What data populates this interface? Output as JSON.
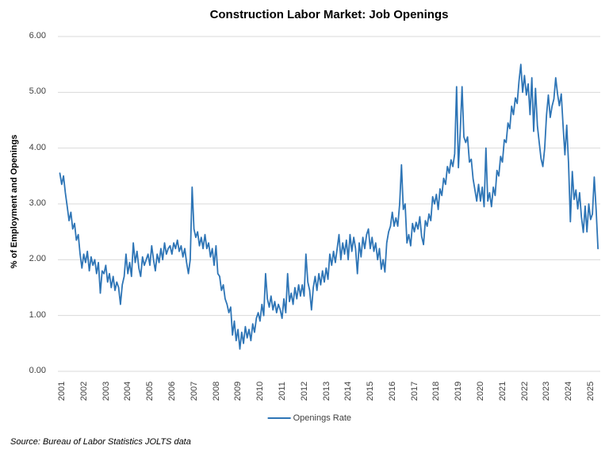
{
  "chart_data": {
    "type": "line",
    "title": "Construction Labor Market: Job Openings",
    "ylabel": "% of Employment and Openings",
    "xlabel": "",
    "ylim": [
      0,
      6
    ],
    "grid": "horizontal",
    "legend_position": "bottom",
    "y_ticks": [
      "0.00",
      "1.00",
      "2.00",
      "3.00",
      "4.00",
      "5.00",
      "6.00"
    ],
    "x_tick_years": [
      "2001",
      "2002",
      "2003",
      "2004",
      "2005",
      "2006",
      "2007",
      "2008",
      "2009",
      "2010",
      "2011",
      "2012",
      "2013",
      "2014",
      "2015",
      "2016",
      "2017",
      "2018",
      "2019",
      "2020",
      "2021",
      "2022",
      "2023",
      "2024",
      "2025"
    ],
    "start_month": "2001-01",
    "frequency": "monthly",
    "series": [
      {
        "name": "Openings Rate",
        "color": "#2E75B6",
        "values": [
          3.55,
          3.35,
          3.5,
          3.2,
          2.95,
          2.7,
          2.85,
          2.55,
          2.65,
          2.35,
          2.45,
          2.1,
          1.85,
          2.1,
          1.95,
          2.15,
          1.8,
          2.05,
          1.9,
          2.0,
          1.75,
          1.95,
          1.4,
          1.8,
          1.75,
          1.9,
          1.6,
          1.75,
          1.5,
          1.7,
          1.45,
          1.6,
          1.5,
          1.2,
          1.55,
          1.7,
          2.1,
          1.75,
          1.95,
          1.7,
          2.3,
          1.95,
          2.15,
          1.85,
          1.7,
          2.05,
          1.9,
          2.0,
          2.1,
          1.9,
          2.25,
          2.0,
          1.8,
          2.1,
          1.95,
          2.2,
          2.0,
          2.3,
          2.1,
          2.2,
          2.25,
          2.1,
          2.3,
          2.2,
          2.35,
          2.15,
          2.25,
          2.05,
          2.2,
          1.95,
          1.75,
          2.0,
          3.3,
          2.55,
          2.4,
          2.5,
          2.25,
          2.4,
          2.2,
          2.45,
          2.2,
          2.3,
          2.05,
          2.2,
          1.9,
          2.25,
          1.75,
          1.7,
          1.45,
          1.55,
          1.3,
          1.2,
          1.05,
          1.15,
          0.65,
          0.9,
          0.55,
          0.75,
          0.4,
          0.7,
          0.5,
          0.8,
          0.6,
          0.75,
          0.55,
          0.85,
          0.7,
          0.95,
          1.05,
          0.9,
          1.2,
          1.0,
          1.75,
          1.3,
          1.15,
          1.35,
          1.1,
          1.25,
          1.05,
          1.2,
          1.1,
          0.95,
          1.3,
          1.05,
          1.75,
          1.25,
          1.4,
          1.2,
          1.5,
          1.3,
          1.55,
          1.35,
          1.55,
          1.35,
          2.1,
          1.6,
          1.45,
          1.1,
          1.5,
          1.7,
          1.45,
          1.75,
          1.55,
          1.8,
          1.6,
          1.85,
          1.65,
          2.1,
          1.9,
          2.15,
          1.95,
          2.2,
          2.45,
          2.0,
          2.3,
          2.1,
          2.35,
          2.0,
          2.45,
          2.15,
          2.4,
          2.2,
          1.75,
          2.3,
          2.05,
          2.4,
          2.2,
          2.45,
          2.55,
          2.2,
          2.4,
          2.15,
          2.3,
          2.0,
          2.2,
          1.83,
          2.0,
          1.78,
          2.3,
          2.5,
          2.6,
          2.85,
          2.6,
          2.75,
          2.6,
          3.0,
          3.7,
          2.9,
          3.0,
          2.3,
          2.45,
          2.25,
          2.65,
          2.5,
          2.67,
          2.55,
          2.77,
          2.42,
          2.27,
          2.7,
          2.6,
          2.82,
          2.7,
          3.13,
          3.0,
          3.17,
          2.9,
          3.27,
          3.15,
          3.46,
          3.35,
          3.67,
          3.55,
          3.79,
          3.67,
          3.9,
          5.1,
          3.65,
          4.3,
          5.1,
          4.2,
          4.1,
          4.2,
          3.75,
          3.8,
          3.45,
          3.25,
          3.05,
          3.35,
          3.05,
          3.3,
          2.95,
          4.0,
          3.05,
          3.2,
          2.95,
          3.3,
          3.15,
          3.6,
          3.5,
          3.85,
          3.75,
          4.15,
          4.1,
          4.45,
          4.35,
          4.75,
          4.6,
          4.9,
          4.8,
          5.2,
          5.5,
          5.0,
          5.3,
          4.95,
          5.15,
          4.6,
          5.26,
          4.3,
          5.07,
          4.4,
          4.1,
          3.81,
          3.67,
          4.0,
          4.59,
          4.95,
          4.55,
          4.75,
          4.88,
          5.26,
          4.97,
          4.76,
          4.97,
          4.4,
          3.88,
          4.41,
          3.72,
          2.68,
          3.58,
          3.08,
          3.25,
          2.91,
          3.2,
          2.77,
          2.49,
          2.96,
          2.5,
          3.0,
          2.72,
          2.82,
          3.48,
          2.89,
          2.2
        ]
      }
    ]
  },
  "source_note": "Source: Bureau of Labor Statistics JOLTS data",
  "colors": {
    "line": "#2E75B6",
    "gridline": "#D9D9D9",
    "tick_text": "#404040",
    "title_text": "#000000",
    "background": "#FFFFFF"
  }
}
